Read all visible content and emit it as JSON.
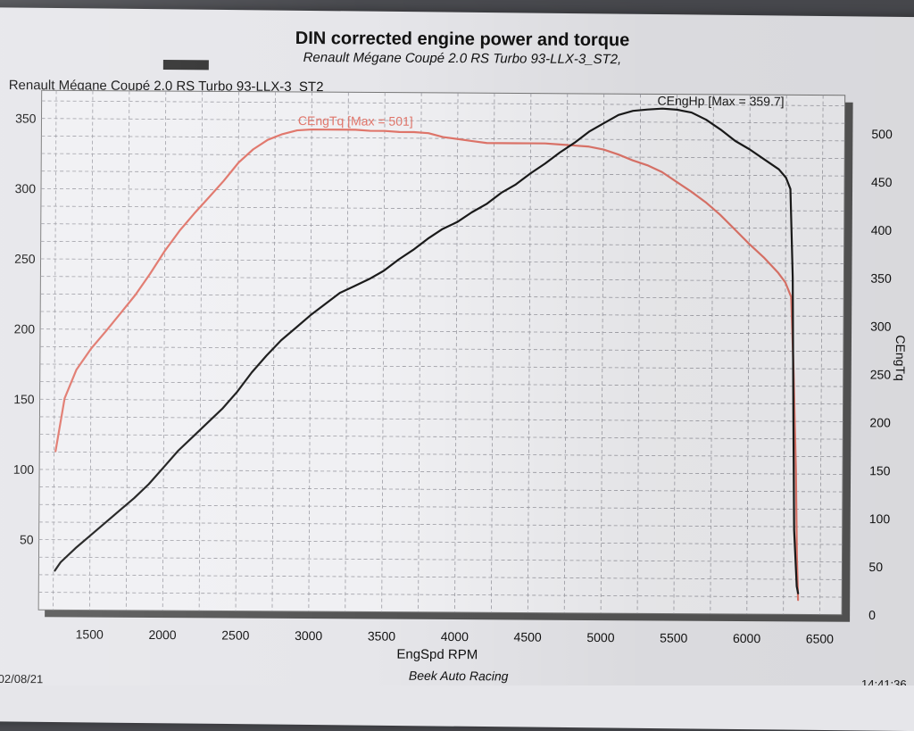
{
  "chart_data": {
    "type": "line",
    "title": "DIN corrected engine power and torque",
    "subtitle": "Renault Mégane Coupé 2.0 RS Turbo   93-LLX-3_ST2,",
    "header_label": "Renault Mégane Coupé 2.0 RS Turbo   93-LLX-3_ST2",
    "xlabel": "EngSpd RPM",
    "y2label": "CEngTq",
    "xlim": [
      1150,
      6650
    ],
    "ylim_left": [
      0,
      370
    ],
    "ylim_right": [
      0,
      540
    ],
    "x_ticks": [
      "1500",
      "2000",
      "2500",
      "3000",
      "3500",
      "4000",
      "4500",
      "5000",
      "5500",
      "6000",
      "6500"
    ],
    "y_left_ticks": [
      "50",
      "100",
      "150",
      "200",
      "250",
      "300",
      "350"
    ],
    "y_right_ticks": [
      "0",
      "50",
      "100",
      "150",
      "200",
      "250",
      "300",
      "350",
      "400",
      "450",
      "500"
    ],
    "grid": true,
    "series": [
      {
        "name": "CEngTq",
        "legend_text": "CEngTq [Max = 501]",
        "axis": "right",
        "color": "#e0756a",
        "x": [
          1260,
          1320,
          1400,
          1500,
          1600,
          1700,
          1800,
          1900,
          2000,
          2100,
          2200,
          2300,
          2400,
          2500,
          2600,
          2700,
          2800,
          2900,
          3000,
          3100,
          3200,
          3300,
          3400,
          3500,
          3600,
          3700,
          3800,
          3900,
          4000,
          4100,
          4200,
          4300,
          4400,
          4500,
          4600,
          4700,
          4800,
          4900,
          5000,
          5100,
          5200,
          5300,
          5400,
          5500,
          5600,
          5700,
          5800,
          5900,
          6000,
          6100,
          6200,
          6250,
          6290,
          6310,
          6330,
          6340,
          6350
        ],
        "y": [
          165,
          220,
          250,
          272,
          290,
          309,
          328,
          350,
          374,
          395,
          413,
          430,
          447,
          466,
          480,
          490,
          496,
          500,
          501,
          501,
          501,
          501,
          500,
          500,
          499,
          499,
          498,
          494,
          492,
          490,
          488,
          488,
          488,
          488,
          488,
          487,
          486,
          485,
          482,
          477,
          471,
          466,
          459,
          449,
          439,
          428,
          415,
          400,
          385,
          371,
          355,
          345,
          330,
          250,
          150,
          60,
          15
        ]
      },
      {
        "name": "CEngHp",
        "legend_text": "CEngHp [Max = 359.7]",
        "axis": "left",
        "color": "#1a1a1a",
        "x": [
          1260,
          1300,
          1400,
          1500,
          1600,
          1700,
          1800,
          1900,
          2000,
          2100,
          2200,
          2300,
          2400,
          2500,
          2600,
          2700,
          2800,
          2900,
          3000,
          3100,
          3200,
          3300,
          3400,
          3500,
          3600,
          3700,
          3800,
          3900,
          4000,
          4100,
          4200,
          4300,
          4400,
          4500,
          4600,
          4700,
          4800,
          4900,
          5000,
          5100,
          5200,
          5300,
          5400,
          5500,
          5600,
          5700,
          5800,
          5900,
          6000,
          6100,
          6200,
          6250,
          6280,
          6300,
          6310,
          6320,
          6340,
          6350
        ],
        "y": [
          28,
          34,
          44,
          53,
          62,
          71,
          80,
          90,
          102,
          114,
          124,
          134,
          144,
          156,
          170,
          182,
          193,
          202,
          211,
          219,
          227,
          232,
          237,
          243,
          251,
          258,
          266,
          273,
          278,
          285,
          291,
          299,
          305,
          313,
          320,
          328,
          335,
          343,
          349,
          355,
          358,
          359,
          359.7,
          359,
          357,
          352,
          345,
          337,
          331,
          324,
          317,
          311,
          303,
          240,
          140,
          60,
          20,
          15
        ]
      }
    ]
  },
  "footer": {
    "date": "02/08/21",
    "company": "Beek Auto Racing",
    "time": "14:41:36"
  }
}
